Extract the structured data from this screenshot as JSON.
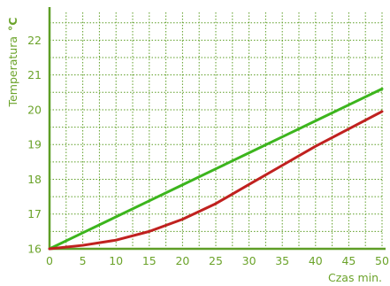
{
  "colors": {
    "axis": "#5e9e26",
    "grid": "#5e9e26",
    "text": "#6ba32a",
    "green_series": "#3cb51d",
    "red_series": "#c0211f"
  },
  "chart_data": {
    "type": "line",
    "xlabel": "Czas min.",
    "ylabel": "Temperatura",
    "ylabel_unit": "°C",
    "xlim": [
      0,
      50
    ],
    "ylim": [
      16,
      22.8
    ],
    "x_ticks": [
      0,
      5,
      10,
      15,
      20,
      25,
      30,
      35,
      40,
      45,
      50
    ],
    "y_ticks": [
      16,
      17,
      18,
      19,
      20,
      21,
      22
    ],
    "grid": true,
    "legend": "none",
    "series": [
      {
        "color": "#3cb51d",
        "x": [
          0,
          5,
          10,
          15,
          20,
          25,
          30,
          35,
          40,
          45,
          50
        ],
        "y": [
          16.0,
          16.46,
          16.92,
          17.38,
          17.84,
          18.3,
          18.76,
          19.22,
          19.68,
          20.14,
          20.6
        ]
      },
      {
        "color": "#c0211f",
        "x": [
          0,
          5,
          10,
          15,
          20,
          25,
          30,
          35,
          40,
          45,
          50
        ],
        "y": [
          16.0,
          16.1,
          16.25,
          16.5,
          16.85,
          17.3,
          17.85,
          18.4,
          18.95,
          19.45,
          19.95
        ]
      }
    ]
  }
}
